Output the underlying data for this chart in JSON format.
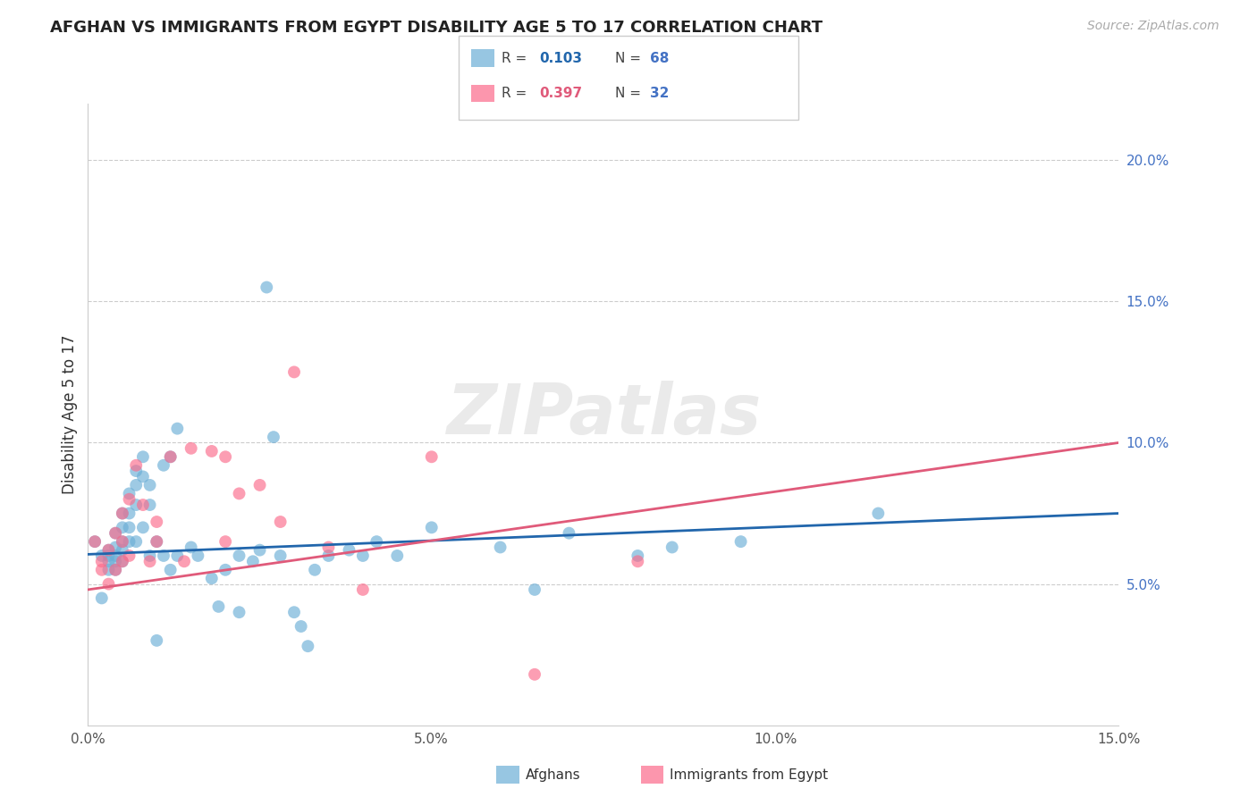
{
  "title": "AFGHAN VS IMMIGRANTS FROM EGYPT DISABILITY AGE 5 TO 17 CORRELATION CHART",
  "source": "Source: ZipAtlas.com",
  "ylabel": "Disability Age 5 to 17",
  "xlim": [
    0.0,
    0.15
  ],
  "ylim": [
    0.0,
    0.22
  ],
  "x_ticks": [
    0.0,
    0.05,
    0.1,
    0.15
  ],
  "x_tick_labels": [
    "0.0%",
    "5.0%",
    "10.0%",
    "15.0%"
  ],
  "y_ticks_right": [
    0.05,
    0.1,
    0.15,
    0.2
  ],
  "y_tick_labels_right": [
    "5.0%",
    "10.0%",
    "15.0%",
    "20.0%"
  ],
  "legend_labels": [
    "Afghans",
    "Immigrants from Egypt"
  ],
  "legend_R": [
    "0.103",
    "0.397"
  ],
  "legend_N": [
    "68",
    "32"
  ],
  "color_afghan": "#6baed6",
  "color_egypt": "#fb6a8a",
  "trendline_color_afghan": "#2166ac",
  "trendline_color_egypt": "#e05a7a",
  "background_color": "#ffffff",
  "grid_color": "#cccccc",
  "title_color": "#222222",
  "right_axis_color": "#4472c4",
  "watermark": "ZIPatlas",
  "afghan_x": [
    0.001,
    0.002,
    0.002,
    0.003,
    0.003,
    0.003,
    0.003,
    0.004,
    0.004,
    0.004,
    0.004,
    0.004,
    0.005,
    0.005,
    0.005,
    0.005,
    0.005,
    0.006,
    0.006,
    0.006,
    0.006,
    0.007,
    0.007,
    0.007,
    0.007,
    0.008,
    0.008,
    0.008,
    0.009,
    0.009,
    0.009,
    0.01,
    0.01,
    0.011,
    0.011,
    0.012,
    0.012,
    0.013,
    0.013,
    0.015,
    0.016,
    0.018,
    0.019,
    0.02,
    0.022,
    0.022,
    0.024,
    0.025,
    0.026,
    0.027,
    0.028,
    0.03,
    0.031,
    0.032,
    0.033,
    0.035,
    0.038,
    0.04,
    0.042,
    0.045,
    0.05,
    0.06,
    0.065,
    0.07,
    0.08,
    0.085,
    0.095,
    0.115
  ],
  "afghan_y": [
    0.065,
    0.045,
    0.06,
    0.062,
    0.06,
    0.058,
    0.055,
    0.068,
    0.063,
    0.06,
    0.058,
    0.055,
    0.075,
    0.07,
    0.065,
    0.062,
    0.058,
    0.082,
    0.075,
    0.07,
    0.065,
    0.09,
    0.085,
    0.078,
    0.065,
    0.095,
    0.088,
    0.07,
    0.085,
    0.078,
    0.06,
    0.03,
    0.065,
    0.092,
    0.06,
    0.095,
    0.055,
    0.105,
    0.06,
    0.063,
    0.06,
    0.052,
    0.042,
    0.055,
    0.06,
    0.04,
    0.058,
    0.062,
    0.155,
    0.102,
    0.06,
    0.04,
    0.035,
    0.028,
    0.055,
    0.06,
    0.062,
    0.06,
    0.065,
    0.06,
    0.07,
    0.063,
    0.048,
    0.068,
    0.06,
    0.063,
    0.065,
    0.075
  ],
  "egypt_x": [
    0.001,
    0.002,
    0.002,
    0.003,
    0.003,
    0.004,
    0.004,
    0.005,
    0.005,
    0.005,
    0.006,
    0.006,
    0.007,
    0.008,
    0.009,
    0.01,
    0.01,
    0.012,
    0.014,
    0.015,
    0.018,
    0.02,
    0.02,
    0.022,
    0.025,
    0.028,
    0.03,
    0.035,
    0.04,
    0.05,
    0.065,
    0.08
  ],
  "egypt_y": [
    0.065,
    0.058,
    0.055,
    0.062,
    0.05,
    0.068,
    0.055,
    0.075,
    0.065,
    0.058,
    0.08,
    0.06,
    0.092,
    0.078,
    0.058,
    0.072,
    0.065,
    0.095,
    0.058,
    0.098,
    0.097,
    0.095,
    0.065,
    0.082,
    0.085,
    0.072,
    0.125,
    0.063,
    0.048,
    0.095,
    0.018,
    0.058
  ],
  "afghan_trend_x": [
    0.0,
    0.15
  ],
  "afghan_trend_y": [
    0.0605,
    0.075
  ],
  "egypt_trend_x": [
    0.0,
    0.15
  ],
  "egypt_trend_y": [
    0.048,
    0.1
  ]
}
